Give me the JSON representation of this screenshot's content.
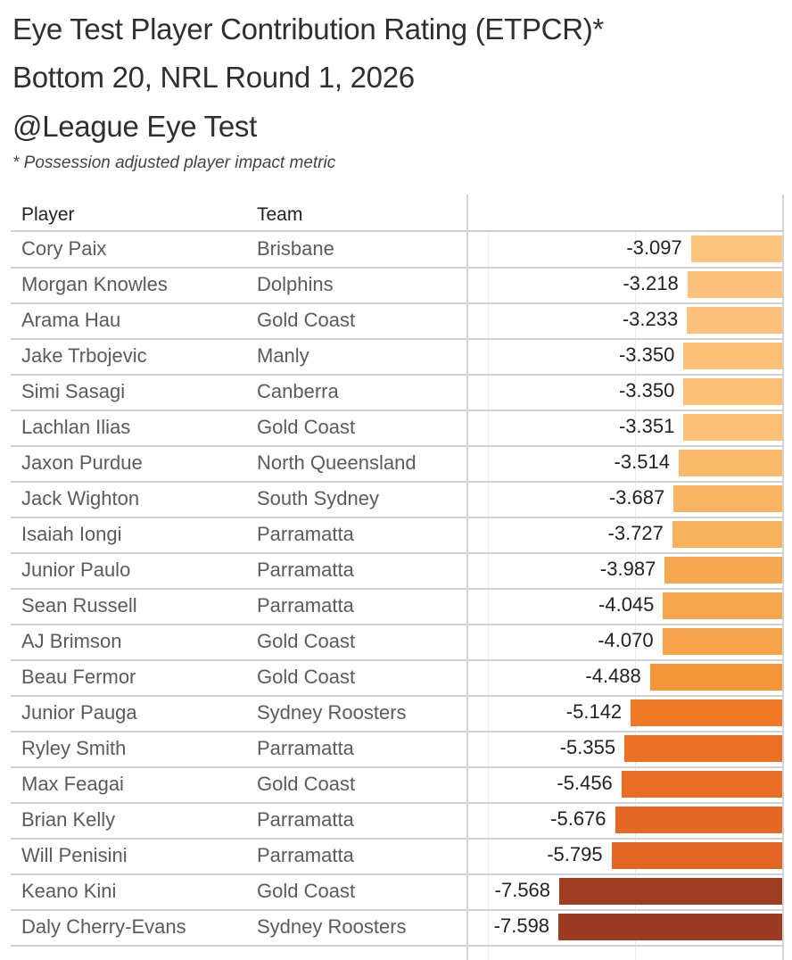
{
  "title": {
    "line1": "Eye Test Player Contribution Rating (ETPCR)*",
    "line2": "Bottom 20, NRL Round 1, 2026",
    "line3": "@League Eye Test",
    "footnote": "* Possession adjusted player impact metric"
  },
  "table": {
    "headers": {
      "player": "Player",
      "team": "Team"
    }
  },
  "chart_data": {
    "type": "bar",
    "orientation": "horizontal",
    "title": "Eye Test Player Contribution Rating (ETPCR)* Bottom 20, NRL Round 1, 2026",
    "subtitle": "* Possession adjusted player impact metric",
    "xlabel": "",
    "ylabel": "Player",
    "xlim": [
      -10,
      0
    ],
    "grid": true,
    "legend": "none",
    "categories": [
      "Cory Paix",
      "Morgan Knowles",
      "Arama Hau",
      "Jake Trbojevic",
      "Simi Sasagi",
      "Lachlan Ilias",
      "Jaxon Purdue",
      "Jack Wighton",
      "Isaiah Iongi",
      "Junior Paulo",
      "Sean Russell",
      "AJ Brimson",
      "Beau Fermor",
      "Junior Pauga",
      "Ryley Smith",
      "Max Feagai",
      "Brian Kelly",
      "Will Penisini",
      "Keano Kini",
      "Daly Cherry-Evans"
    ],
    "teams": [
      "Brisbane",
      "Dolphins",
      "Gold Coast",
      "Manly",
      "Canberra",
      "Gold Coast",
      "North Queensland",
      "South Sydney",
      "Parramatta",
      "Parramatta",
      "Parramatta",
      "Gold Coast",
      "Gold Coast",
      "Sydney Roosters",
      "Parramatta",
      "Gold Coast",
      "Parramatta",
      "Parramatta",
      "Gold Coast",
      "Sydney Roosters"
    ],
    "values": [
      -3.097,
      -3.218,
      -3.233,
      -3.35,
      -3.35,
      -3.351,
      -3.514,
      -3.687,
      -3.727,
      -3.987,
      -4.045,
      -4.07,
      -4.488,
      -5.142,
      -5.355,
      -5.456,
      -5.676,
      -5.795,
      -7.568,
      -7.598
    ],
    "labels": [
      "-3.097",
      "-3.218",
      "-3.233",
      "-3.350",
      "-3.350",
      "-3.351",
      "-3.514",
      "-3.687",
      "-3.727",
      "-3.987",
      "-4.045",
      "-4.070",
      "-4.488",
      "-5.142",
      "-5.355",
      "-5.456",
      "-5.676",
      "-5.795",
      "-7.568",
      "-7.598"
    ],
    "colors": [
      "#fdc47e",
      "#fdc27b",
      "#fdc27b",
      "#fcbf76",
      "#fcbf76",
      "#fcbf76",
      "#fbb96c",
      "#f9b462",
      "#f8b15c",
      "#f6a84f",
      "#f6a64c",
      "#f6a54b",
      "#f5963a",
      "#ef7927",
      "#eb7024",
      "#ea6d24",
      "#e56824",
      "#e26523",
      "#9e3d22",
      "#9b3b22"
    ]
  }
}
